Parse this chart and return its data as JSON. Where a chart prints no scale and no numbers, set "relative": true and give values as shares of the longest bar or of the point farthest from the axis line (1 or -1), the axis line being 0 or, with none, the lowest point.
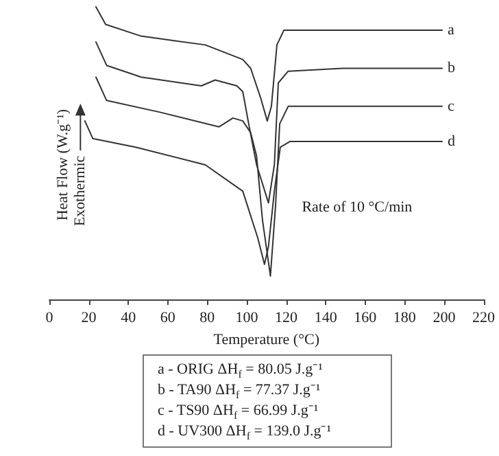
{
  "chart_data": {
    "type": "line",
    "relative": true,
    "xlabel": "Temperature (°C)",
    "ylabel": "Heat Flow (W.g⁻¹)",
    "xlim": [
      0,
      220
    ],
    "xticks": [
      0,
      20,
      40,
      60,
      80,
      100,
      120,
      140,
      160,
      180,
      200,
      220
    ],
    "grid": false,
    "legend": false,
    "marker": "none",
    "line_style": "solid",
    "annotations": [
      "Rate of 10 °C/min",
      "Exothermic",
      "a - ORIG ΔH$_{f}$ = 80.05 J.g⁻¹",
      "b - TA90 ΔH$_{f}$ = 77.37 J.g⁻¹",
      "c - TS90 ΔH$_{f}$ = 66.99 J.g⁻¹",
      "d - UV300 ΔH$_{f}$ = 139.0 J.g⁻¹"
    ],
    "series": [
      {
        "name": "a",
        "color": "#333333",
        "x": [
          23.6,
          28.5,
          46.5,
          79,
          98,
          102,
          107,
          110.4,
          112.5,
          115.3,
          118.8,
          148.6,
          199
        ],
        "values": [
          1.0,
          0.94,
          0.9,
          0.87,
          0.82,
          0.79,
          0.69,
          0.61,
          0.66,
          0.87,
          0.92,
          0.92,
          0.92
        ]
      },
      {
        "name": "b",
        "color": "#333333",
        "x": [
          23.6,
          29,
          46.5,
          77,
          84,
          95,
          98,
          101,
          105,
          111,
          114,
          116,
          121,
          148.6,
          199
        ],
        "values": [
          0.88,
          0.8,
          0.76,
          0.73,
          0.75,
          0.73,
          0.71,
          0.6,
          0.46,
          0.33,
          0.46,
          0.74,
          0.78,
          0.79,
          0.79
        ]
      },
      {
        "name": "c",
        "color": "#333333",
        "x": [
          23.6,
          29,
          56,
          86,
          93,
          98,
          102,
          105,
          108,
          112,
          114.6,
          116.7,
          121,
          148.6,
          199
        ],
        "values": [
          0.76,
          0.68,
          0.64,
          0.59,
          0.62,
          0.61,
          0.57,
          0.49,
          0.27,
          0.08,
          0.32,
          0.6,
          0.66,
          0.66,
          0.66
        ]
      },
      {
        "name": "d",
        "color": "#333333",
        "x": [
          18,
          22,
          44,
          79,
          98,
          105.6,
          109,
          111,
          114,
          117,
          122,
          148.6,
          199
        ],
        "values": [
          0.61,
          0.55,
          0.52,
          0.46,
          0.37,
          0.21,
          0.12,
          0.18,
          0.37,
          0.52,
          0.54,
          0.54,
          0.54
        ]
      }
    ]
  }
}
